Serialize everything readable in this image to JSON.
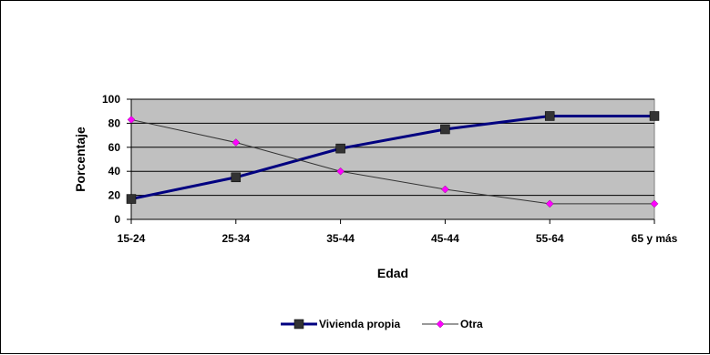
{
  "chart_data": {
    "type": "line",
    "title": "",
    "xlabel": "Edad",
    "ylabel": "Porcentaje",
    "categories": [
      "15-24",
      "25-34",
      "35-44",
      "45-44",
      "55-64",
      "65 y más"
    ],
    "ylim": [
      0,
      100
    ],
    "yticks": [
      0,
      20,
      40,
      60,
      80,
      100
    ],
    "grid": true,
    "plot_background": "#c0c0c0",
    "legend": "bottom",
    "series": [
      {
        "name": "Vivienda propia",
        "values": [
          17,
          35,
          59,
          75,
          86,
          86
        ],
        "color": "#000080",
        "marker": "square",
        "marker_color": "#333333"
      },
      {
        "name": "Otra",
        "values": [
          83,
          64,
          40,
          25,
          13,
          13
        ],
        "color": "#333333",
        "marker": "diamond",
        "marker_color": "#ff00ff"
      }
    ]
  }
}
